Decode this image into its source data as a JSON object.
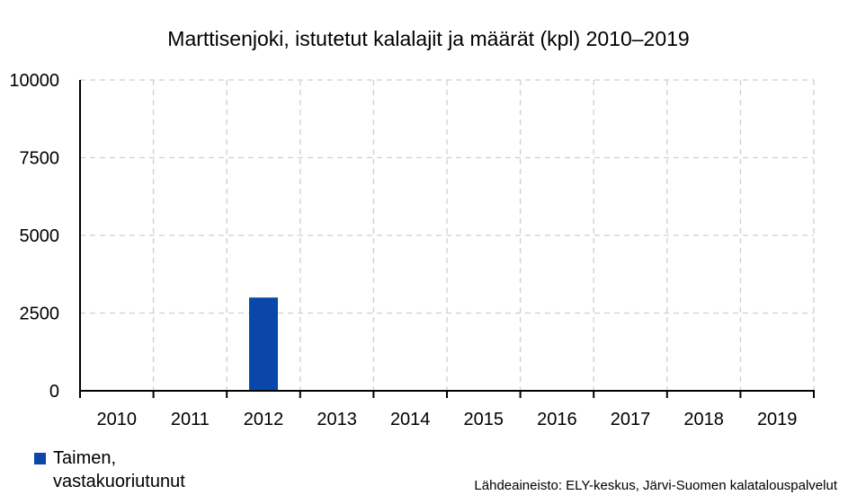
{
  "chart_data": {
    "type": "bar",
    "title": "Marttisenjoki, istutetut kalalajit ja määrät (kpl) 2010–2019",
    "categories": [
      "2010",
      "2011",
      "2012",
      "2013",
      "2014",
      "2015",
      "2016",
      "2017",
      "2018",
      "2019"
    ],
    "series": [
      {
        "name": "Taimen, vastakuoriutunut",
        "values": [
          0,
          0,
          3000,
          0,
          0,
          0,
          0,
          0,
          0,
          0
        ],
        "color": "#0a47a9"
      }
    ],
    "ylim": [
      0,
      10000
    ],
    "yticks": [
      "0",
      "2500",
      "5000",
      "7500",
      "10000"
    ],
    "grid": true,
    "legend": "bottom-left"
  },
  "source_note": "Lähdeaineisto: ELY-keskus, Järvi-Suomen kalatalouspalvelut"
}
